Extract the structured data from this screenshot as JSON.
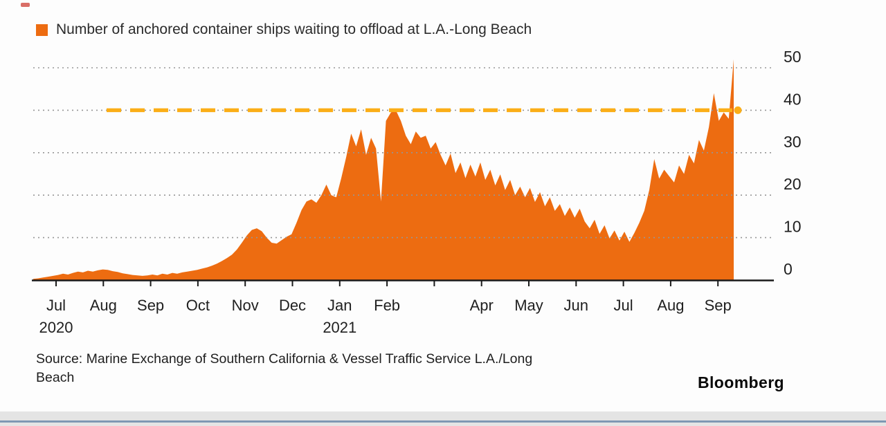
{
  "legend": {
    "label": "Number of anchored container ships waiting to offload at L.A.-Long Beach"
  },
  "source": {
    "lines": [
      "Source: Marine Exchange of Southern California & Vessel Traffic Service L.A./Long",
      "Beach"
    ]
  },
  "branding": {
    "label": "Bloomberg"
  },
  "colors": {
    "area": "#ED6C11",
    "reference": "#FBAE17",
    "grid": "#969696",
    "axis": "#1a1a1a",
    "text": "#1f1f1f"
  },
  "chart_data": {
    "type": "area",
    "title": "Number of anchored container ships waiting to offload at L.A.-Long Beach",
    "ylabel": "",
    "xlabel": "",
    "ylim": [
      0,
      50
    ],
    "y_ticks": [
      0,
      10,
      20,
      30,
      40,
      50
    ],
    "grid": "dotted-horizontal",
    "legend_position": "top-left",
    "x_tick_labels": [
      {
        "label": "Jul",
        "year": "2020"
      },
      {
        "label": "Aug",
        "year": ""
      },
      {
        "label": "Sep",
        "year": ""
      },
      {
        "label": "Oct",
        "year": ""
      },
      {
        "label": "Nov",
        "year": ""
      },
      {
        "label": "Dec",
        "year": ""
      },
      {
        "label": "Jan",
        "year": "2021"
      },
      {
        "label": "Feb",
        "year": ""
      },
      {
        "label": "",
        "year": ""
      },
      {
        "label": "Apr",
        "year": ""
      },
      {
        "label": "May",
        "year": ""
      },
      {
        "label": "Jun",
        "year": ""
      },
      {
        "label": "Jul",
        "year": ""
      },
      {
        "label": "Aug",
        "year": ""
      },
      {
        "label": "Sep",
        "year": ""
      }
    ],
    "reference_line": {
      "value": 40,
      "style": "dashed",
      "end_dot": true
    },
    "values": [
      0.3,
      0.4,
      0.6,
      0.8,
      1.0,
      1.2,
      1.5,
      1.3,
      1.7,
      2.0,
      1.8,
      2.2,
      2.0,
      2.3,
      2.5,
      2.4,
      2.1,
      1.9,
      1.6,
      1.4,
      1.2,
      1.1,
      1.0,
      1.1,
      1.3,
      1.1,
      1.5,
      1.3,
      1.7,
      1.5,
      1.8,
      2.0,
      2.2,
      2.4,
      2.7,
      3.0,
      3.4,
      3.9,
      4.5,
      5.2,
      6.0,
      7.2,
      8.8,
      10.5,
      11.8,
      12.2,
      11.5,
      10.0,
      8.8,
      8.6,
      9.4,
      10.2,
      10.8,
      13.5,
      16.5,
      18.5,
      19.0,
      18.2,
      20.0,
      22.5,
      20.0,
      19.5,
      24.0,
      29.0,
      34.5,
      31.5,
      35.5,
      29.5,
      33.5,
      31.0,
      18.5,
      37.5,
      39.5,
      40.0,
      37.5,
      34.0,
      32.0,
      35.0,
      33.5,
      34.0,
      31.0,
      32.5,
      29.5,
      27.0,
      29.8,
      25.2,
      27.7,
      24.0,
      27.2,
      24.4,
      27.7,
      23.6,
      26.0,
      22.3,
      24.9,
      21.2,
      23.6,
      20.0,
      22.0,
      19.5,
      21.7,
      18.4,
      20.7,
      17.4,
      19.5,
      16.3,
      17.9,
      15.1,
      17.1,
      14.7,
      16.8,
      13.8,
      12.2,
      14.2,
      10.9,
      12.9,
      9.8,
      11.7,
      9.3,
      11.4,
      9.0,
      11.1,
      13.5,
      16.3,
      21.2,
      28.5,
      23.9,
      26.0,
      24.5,
      23.0,
      27.0,
      25.0,
      29.5,
      27.5,
      33.0,
      30.5,
      36.0,
      44.0,
      37.5,
      39.5,
      38.0,
      52.0
    ]
  }
}
